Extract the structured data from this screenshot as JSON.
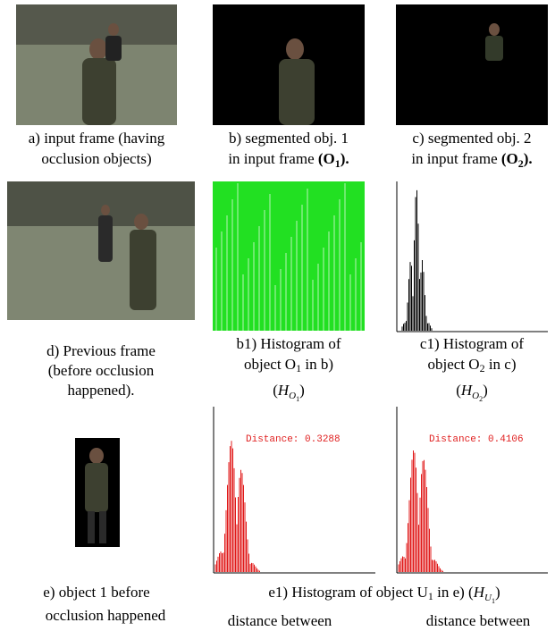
{
  "panels": {
    "a": {
      "caption": [
        "a) input frame (having",
        "occlusion objects)"
      ]
    },
    "b": {
      "caption": [
        "b) segmented obj. 1",
        "in input frame "
      ],
      "symbol": {
        "open": "(O",
        "sub": "1",
        "close": ")."
      }
    },
    "c": {
      "caption": [
        "c) segmented obj. 2",
        "in input frame "
      ],
      "symbol": {
        "open": "(O",
        "sub": "2",
        "close": ")."
      }
    },
    "d": {
      "caption": [
        "d) Previous frame",
        "(before occlusion",
        "happened)."
      ]
    },
    "b1": {
      "caption": [
        "b1) Histogram of",
        "object O"
      ],
      "sub": "1",
      "tail": " in b)",
      "math": {
        "open": "(",
        "base": "H",
        "sub": "O",
        "subsub": "1",
        "close": ")"
      }
    },
    "c1": {
      "caption": [
        "c1) Histogram of",
        "object O"
      ],
      "sub": "2",
      "tail": " in c)",
      "math": {
        "open": "(",
        "base": "H",
        "sub": "O",
        "subsub": "2",
        "close": ")"
      }
    },
    "e": {
      "caption": [
        "e) object 1 before",
        "occlusion happened"
      ]
    },
    "e1": {
      "caption": "e1) Histogram of object U",
      "sub": "1",
      "tail": " in e)  ",
      "math": {
        "open": "(",
        "base": "H",
        "sub": "U",
        "subsub": "1",
        "close": ")"
      },
      "left_distance": "Distance: 0.3288",
      "right_distance": "Distance: 0.4106",
      "footer": [
        "distance between",
        "distance between"
      ]
    }
  }
}
